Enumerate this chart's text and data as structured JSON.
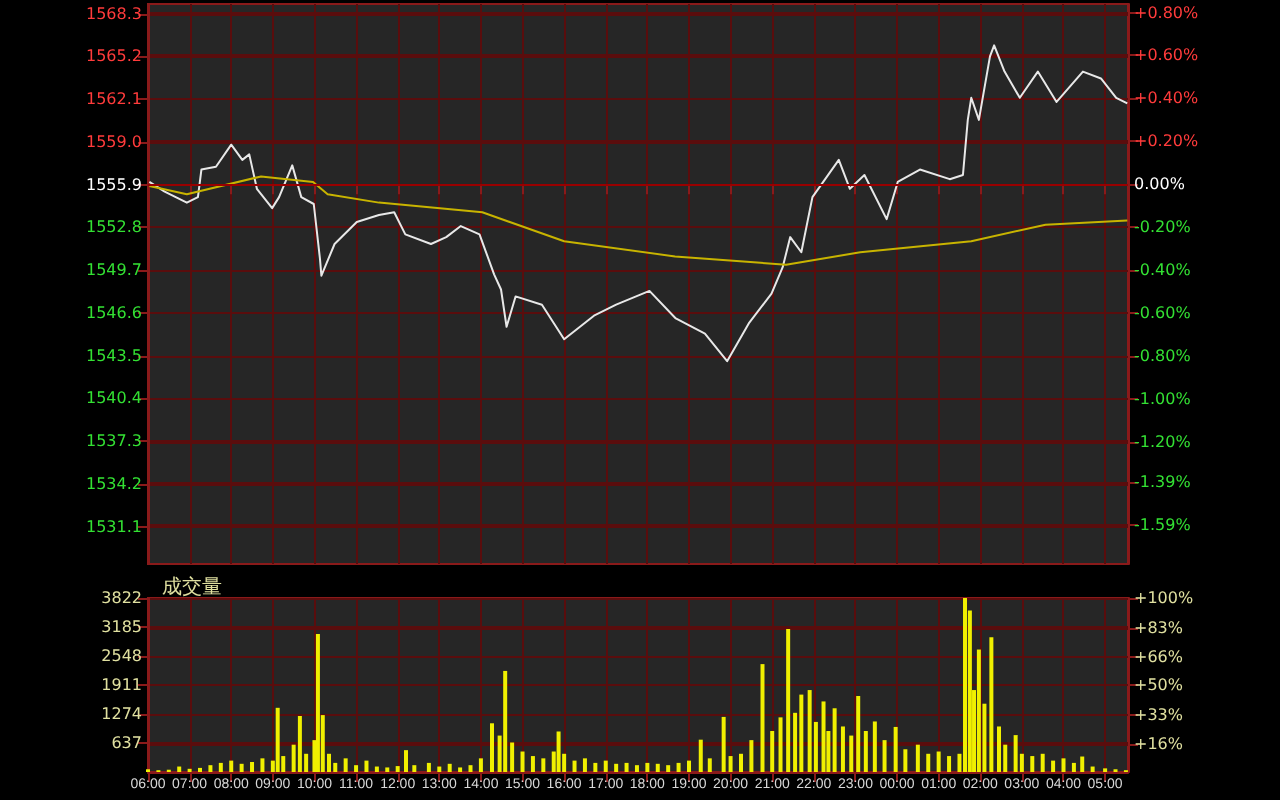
{
  "chart_data": [
    {
      "type": "line",
      "xlim": [
        "--01-01T06:00",
        "--01-02T05:33"
      ],
      "ylim": [
        1528.4,
        1569.0
      ],
      "y2lim": [
        -1.77,
        0.84
      ],
      "xticks": [
        {
          "value": "--01-01T06:00",
          "label": null
        },
        {
          "value": "--01-01T07:00",
          "label": null
        },
        {
          "value": "--01-01T08:00",
          "label": null
        },
        {
          "value": "--01-01T09:00",
          "label": null
        },
        {
          "value": "--01-01T10:00",
          "label": null
        },
        {
          "value": "--01-01T11:00",
          "label": null
        },
        {
          "value": "--01-01T12:00",
          "label": null
        },
        {
          "value": "--01-01T13:00",
          "label": null
        },
        {
          "value": "--01-01T14:00",
          "label": null
        },
        {
          "value": "--01-01T15:00",
          "label": null
        },
        {
          "value": "--01-01T16:00",
          "label": null
        },
        {
          "value": "--01-01T17:00",
          "label": null
        },
        {
          "value": "--01-01T18:00",
          "label": null
        },
        {
          "value": "--01-01T19:00",
          "label": null
        },
        {
          "value": "--01-01T20:00",
          "label": null
        },
        {
          "value": "--01-01T21:00",
          "label": null
        },
        {
          "value": "--01-01T22:00",
          "label": null
        },
        {
          "value": "--01-01T23:00",
          "label": null
        },
        {
          "value": "--01-02T00:00",
          "label": null
        },
        {
          "value": "--01-02T01:00",
          "label": null
        },
        {
          "value": "--01-02T02:00",
          "label": null
        },
        {
          "value": "--01-02T03:00",
          "label": null
        },
        {
          "value": "--01-02T04:00",
          "label": null
        },
        {
          "value": "--01-02T05:00",
          "label": null
        }
      ],
      "yticks": [
        1531.1,
        1534.2,
        1537.3,
        1540.4,
        1543.5,
        1546.6,
        1549.7,
        1552.8,
        1555.9,
        {
          "value": 1559,
          "label": "1559.0"
        },
        1562.1,
        1565.2,
        1568.3
      ],
      "y2ticks": [
        {
          "value": -1.59,
          "label": "-1.59%"
        },
        {
          "value": -1.39,
          "label": "-1.39%"
        },
        {
          "value": -1.2,
          "label": "-1.20%"
        },
        {
          "value": -1.0,
          "label": "-1.00%"
        },
        {
          "value": -0.8,
          "label": "-0.80%"
        },
        {
          "value": -0.6,
          "label": "-0.60%"
        },
        {
          "value": -0.4,
          "label": "-0.40%"
        },
        {
          "value": -0.2,
          "label": "-0.20%"
        },
        {
          "value": 0,
          "label": "0.00%"
        },
        {
          "value": 0.2,
          "label": "+0.20%"
        },
        {
          "value": 0.4,
          "label": "+0.40%"
        },
        {
          "value": 0.6,
          "label": "+0.60%"
        },
        {
          "value": 0.8,
          "label": "+0.80%"
        }
      ],
      "tick_labels": "y",
      "grid": true,
      "marker": "none",
      "line_style": "solid",
      "ref_lines": [
        {
          "axis": "y",
          "value": 1555.9,
          "color": "#990000"
        }
      ],
      "series": [
        {
          "color": "#e8e8e8",
          "x": [
            "--01-01T06:02",
            "--01-01T06:24",
            "--01-01T06:56",
            "--01-01T07:12",
            "--01-01T07:17",
            "--01-01T07:38",
            "--01-01T08:00",
            "--01-01T08:16",
            "--01-01T08:26",
            "--01-01T08:37",
            "--01-01T08:59",
            "--01-01T09:09",
            "--01-01T09:28",
            "--01-01T09:41",
            "--01-01T09:59",
            "--01-01T10:08",
            "--01-01T10:10",
            "--01-01T10:29",
            "--01-01T11:01",
            "--01-01T11:33",
            "--01-01T11:55",
            "--01-01T12:11",
            "--01-01T12:48",
            "--01-01T13:10",
            "--01-01T13:31",
            "--01-01T13:58",
            "--01-01T14:19",
            "--01-01T14:29",
            "--01-01T14:37",
            "--01-01T14:50",
            "--01-01T15:28",
            "--01-01T16:00",
            "--01-01T16:43",
            "--01-01T17:15",
            "--01-01T18:03",
            "--01-01T18:41",
            "--01-01T19:23",
            "--01-01T19:55",
            "--01-01T20:27",
            "--01-01T20:59",
            "--01-01T21:15",
            "--01-01T21:26",
            "--01-01T21:42",
            "--01-01T21:58",
            "--01-01T22:36",
            "--01-01T22:52",
            "--01-01T23:13",
            "--01-01T23:45",
            "--01-02T00:01",
            "--01-02T00:33",
            "--01-02T01:16",
            "--01-02T01:35",
            "--01-02T01:42",
            "--01-02T01:47",
            "--01-02T01:58",
            "--01-02T02:14",
            "--01-02T02:20",
            "--01-02T02:35",
            "--01-02T02:57",
            "--01-02T03:23",
            "--01-02T03:50",
            "--01-02T04:28",
            "--01-02T04:54",
            "--01-02T05:16",
            "--01-02T05:32"
          ],
          "values": [
            1556.1,
            1555.4,
            1554.6,
            1555.0,
            1557.0,
            1557.2,
            1558.8,
            1557.7,
            1558.1,
            1555.6,
            1554.2,
            1555.0,
            1557.3,
            1555.0,
            1554.5,
            1550.5,
            1549.3,
            1551.6,
            1553.2,
            1553.7,
            1553.9,
            1552.3,
            1551.6,
            1552.1,
            1552.9,
            1552.3,
            1549.4,
            1548.3,
            1545.6,
            1547.8,
            1547.2,
            1544.7,
            1546.4,
            1547.2,
            1548.2,
            1546.2,
            1545.1,
            1543.1,
            1545.9,
            1548.0,
            1549.9,
            1552.1,
            1551.0,
            1555.0,
            1557.7,
            1555.6,
            1556.6,
            1553.4,
            1556.1,
            1557.0,
            1556.3,
            1556.6,
            1560.6,
            1562.2,
            1560.6,
            1565.2,
            1566.0,
            1564.1,
            1562.2,
            1564.1,
            1561.9,
            1564.1,
            1563.6,
            1562.2,
            1561.8
          ]
        },
        {
          "color": "#c8b400",
          "x": [
            "--01-01T06:02",
            "--01-01T06:56",
            "--01-01T08:43",
            "--01-01T09:58",
            "--01-01T10:19",
            "--01-01T11:33",
            "--01-01T14:02",
            "--01-01T16:00",
            "--01-01T18:40",
            "--01-01T21:20",
            "--01-01T23:07",
            "--01-02T01:47",
            "--01-02T03:34",
            "--01-02T05:32"
          ],
          "values": [
            1555.8,
            1555.2,
            1556.5,
            1556.1,
            1555.2,
            1554.6,
            1553.9,
            1551.8,
            1550.7,
            1550.1,
            1551.0,
            1551.8,
            1553.0,
            1553.3
          ]
        }
      ]
    },
    {
      "type": "bar",
      "title": "成交量",
      "xlim": [
        "--01-01T06:00",
        "--01-02T05:33"
      ],
      "ylim": [
        0,
        3822
      ],
      "y2lim": [
        0,
        100
      ],
      "xticks": [
        {
          "value": "--01-01T06:00",
          "label": "06:00"
        },
        {
          "value": "--01-01T07:00",
          "label": "07:00"
        },
        {
          "value": "--01-01T08:00",
          "label": "08:00"
        },
        {
          "value": "--01-01T09:00",
          "label": "09:00"
        },
        {
          "value": "--01-01T10:00",
          "label": "10:00"
        },
        {
          "value": "--01-01T11:00",
          "label": "11:00"
        },
        {
          "value": "--01-01T12:00",
          "label": "12:00"
        },
        {
          "value": "--01-01T13:00",
          "label": "13:00"
        },
        {
          "value": "--01-01T14:00",
          "label": "14:00"
        },
        {
          "value": "--01-01T15:00",
          "label": "15:00"
        },
        {
          "value": "--01-01T16:00",
          "label": "16:00"
        },
        {
          "value": "--01-01T17:00",
          "label": "17:00"
        },
        {
          "value": "--01-01T18:00",
          "label": "18:00"
        },
        {
          "value": "--01-01T19:00",
          "label": "19:00"
        },
        {
          "value": "--01-01T20:00",
          "label": "20:00"
        },
        {
          "value": "--01-01T21:00",
          "label": "21:00"
        },
        {
          "value": "--01-01T22:00",
          "label": "22:00"
        },
        {
          "value": "--01-01T23:00",
          "label": "23:00"
        },
        {
          "value": "--01-02T00:00",
          "label": "00:00"
        },
        {
          "value": "--01-02T01:00",
          "label": "01:00"
        },
        {
          "value": "--01-02T02:00",
          "label": "02:00"
        },
        {
          "value": "--01-02T03:00",
          "label": "03:00"
        },
        {
          "value": "--01-02T04:00",
          "label": "04:00"
        },
        {
          "value": "--01-02T05:00",
          "label": "05:00"
        }
      ],
      "yticks": [
        637,
        1274,
        1911,
        2548,
        3185,
        3822
      ],
      "y2ticks": [
        {
          "value": 16,
          "label": "+16%"
        },
        {
          "value": 33,
          "label": "+33%"
        },
        {
          "value": 50,
          "label": "+50%"
        },
        {
          "value": 66,
          "label": "+66%"
        },
        {
          "value": 83,
          "label": "+83%"
        },
        {
          "value": 100,
          "label": "+100%"
        }
      ],
      "grid": true,
      "series": [
        {
          "color": "#f0f000",
          "x": [
            "--01-01T06:00",
            "--01-01T06:15",
            "--01-01T06:30",
            "--01-01T06:45",
            "--01-01T07:00",
            "--01-01T07:15",
            "--01-01T07:30",
            "--01-01T07:45",
            "--01-01T08:00",
            "--01-01T08:15",
            "--01-01T08:30",
            "--01-01T08:45",
            "--01-01T09:00",
            "--01-01T09:07",
            "--01-01T09:15",
            "--01-01T09:30",
            "--01-01T09:39",
            "--01-01T09:48",
            "--01-01T10:00",
            "--01-01T10:05",
            "--01-01T10:12",
            "--01-01T10:21",
            "--01-01T10:30",
            "--01-01T10:45",
            "--01-01T11:00",
            "--01-01T11:15",
            "--01-01T11:30",
            "--01-01T11:45",
            "--01-01T12:00",
            "--01-01T12:12",
            "--01-01T12:24",
            "--01-01T12:45",
            "--01-01T13:00",
            "--01-01T13:15",
            "--01-01T13:30",
            "--01-01T13:45",
            "--01-01T14:00",
            "--01-01T14:16",
            "--01-01T14:27",
            "--01-01T14:35",
            "--01-01T14:45",
            "--01-01T15:00",
            "--01-01T15:15",
            "--01-01T15:30",
            "--01-01T15:45",
            "--01-01T15:52",
            "--01-01T16:00",
            "--01-01T16:15",
            "--01-01T16:30",
            "--01-01T16:45",
            "--01-01T17:00",
            "--01-01T17:15",
            "--01-01T17:30",
            "--01-01T17:45",
            "--01-01T18:00",
            "--01-01T18:15",
            "--01-01T18:30",
            "--01-01T18:45",
            "--01-01T19:00",
            "--01-01T19:17",
            "--01-01T19:30",
            "--01-01T19:50",
            "--01-01T20:00",
            "--01-01T20:15",
            "--01-01T20:30",
            "--01-01T20:46",
            "--01-01T21:00",
            "--01-01T21:12",
            "--01-01T21:23",
            "--01-01T21:33",
            "--01-01T21:42",
            "--01-01T21:54",
            "--01-01T22:03",
            "--01-01T22:14",
            "--01-01T22:21",
            "--01-01T22:30",
            "--01-01T22:42",
            "--01-01T22:54",
            "--01-01T23:04",
            "--01-01T23:15",
            "--01-01T23:28",
            "--01-01T23:42",
            "--01-01T23:58",
            "--01-02T00:12",
            "--01-02T00:30",
            "--01-02T00:45",
            "--01-02T01:00",
            "--01-02T01:15",
            "--01-02T01:30",
            "--01-02T01:38",
            "--01-02T01:45",
            "--01-02T01:51",
            "--01-02T01:58",
            "--01-02T02:06",
            "--01-02T02:16",
            "--01-02T02:27",
            "--01-02T02:36",
            "--01-02T02:51",
            "--01-02T03:00",
            "--01-02T03:15",
            "--01-02T03:30",
            "--01-02T03:45",
            "--01-02T04:00",
            "--01-02T04:15",
            "--01-02T04:27",
            "--01-02T04:42",
            "--01-02T05:00",
            "--01-02T05:15",
            "--01-02T05:30"
          ],
          "values": [
            60,
            40,
            50,
            120,
            70,
            90,
            150,
            200,
            250,
            180,
            220,
            300,
            250,
            1410,
            350,
            600,
            1230,
            400,
            700,
            3030,
            1250,
            400,
            200,
            300,
            150,
            250,
            120,
            100,
            130,
            480,
            150,
            200,
            120,
            180,
            100,
            150,
            300,
            1070,
            800,
            2220,
            650,
            450,
            350,
            300,
            450,
            890,
            400,
            250,
            300,
            200,
            250,
            180,
            200,
            150,
            200,
            180,
            150,
            200,
            250,
            710,
            300,
            1210,
            350,
            400,
            700,
            2370,
            900,
            1200,
            3140,
            1300,
            1700,
            1800,
            1100,
            1550,
            900,
            1400,
            1000,
            800,
            1670,
            900,
            1110,
            700,
            990,
            500,
            600,
            400,
            450,
            350,
            400,
            3820,
            3550,
            1800,
            2690,
            1500,
            2960,
            1000,
            600,
            810,
            400,
            350,
            400,
            250,
            300,
            200,
            340,
            120,
            80,
            60,
            40
          ]
        }
      ]
    }
  ]
}
